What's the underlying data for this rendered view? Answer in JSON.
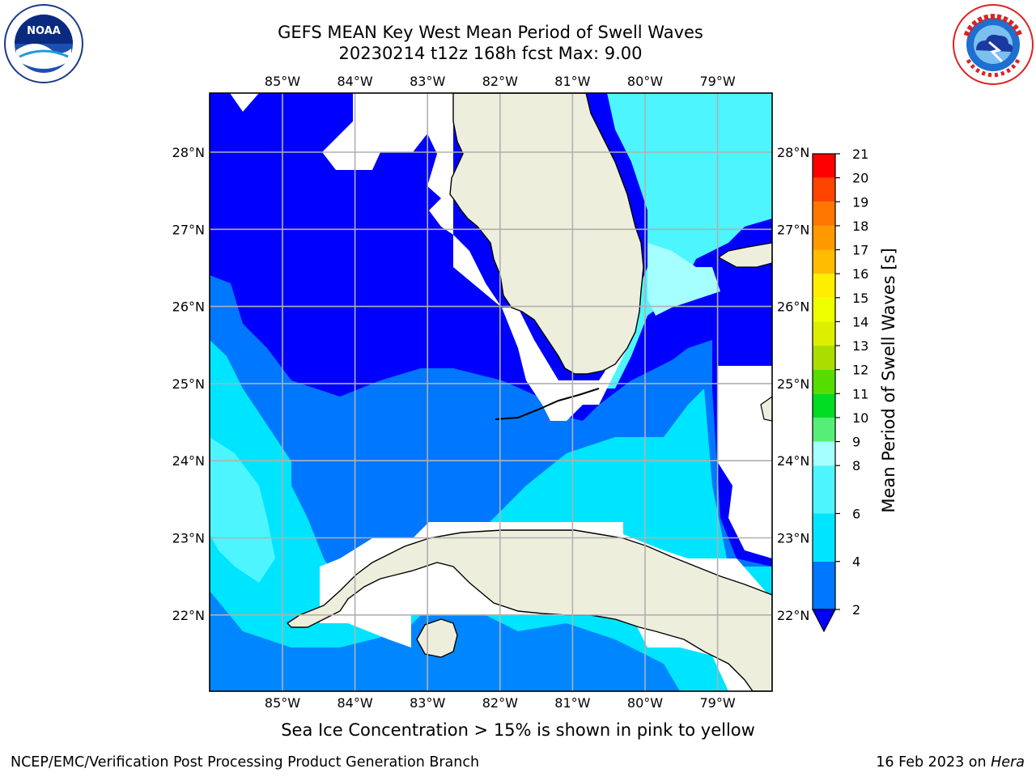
{
  "header": {
    "title_line1": "GEFS MEAN Key West Mean Period of Swell Waves",
    "title_line2": "20230214 t12z 168h fcst   Max: 9.00"
  },
  "logos": {
    "left": "noaa-logo",
    "right": "nws-logo"
  },
  "map": {
    "lon_labels": [
      "85°W",
      "84°W",
      "83°W",
      "82°W",
      "81°W",
      "80°W",
      "79°W"
    ],
    "lat_labels": [
      "28°N",
      "27°N",
      "26°N",
      "25°N",
      "24°N",
      "23°N",
      "22°N"
    ],
    "lon_range": [
      -86.0,
      -78.3
    ],
    "lat_range": [
      21.0,
      28.8
    ],
    "land_color": "#eeeedd",
    "grid_color": "#b0b0b0"
  },
  "colorbar": {
    "label": "Mean Period of Swell Waves [s]",
    "ticks": [
      "2",
      "4",
      "6",
      "8",
      "9",
      "10",
      "11",
      "12",
      "13",
      "14",
      "15",
      "16",
      "17",
      "18",
      "19",
      "20",
      "21"
    ],
    "bins": [
      {
        "from": 2,
        "to": 4,
        "color": "#0077ff"
      },
      {
        "from": 4,
        "to": 6,
        "color": "#00e5ff"
      },
      {
        "from": 6,
        "to": 8,
        "color": "#4df5ff"
      },
      {
        "from": 8,
        "to": 9,
        "color": "#a6ffff"
      },
      {
        "from": 9,
        "to": 10,
        "color": "#55ee77"
      },
      {
        "from": 10,
        "to": 11,
        "color": "#00dd22"
      },
      {
        "from": 11,
        "to": 12,
        "color": "#55dd00"
      },
      {
        "from": 12,
        "to": 13,
        "color": "#aadd00"
      },
      {
        "from": 13,
        "to": 14,
        "color": "#ddee00"
      },
      {
        "from": 14,
        "to": 15,
        "color": "#eeff00"
      },
      {
        "from": 15,
        "to": 16,
        "color": "#ffee00"
      },
      {
        "from": 16,
        "to": 17,
        "color": "#ffbb00"
      },
      {
        "from": 17,
        "to": 18,
        "color": "#ff9900"
      },
      {
        "from": 18,
        "to": 19,
        "color": "#ff7700"
      },
      {
        "from": 19,
        "to": 20,
        "color": "#ff4400"
      },
      {
        "from": 20,
        "to": 21,
        "color": "#ff0000"
      }
    ],
    "under_color": "#0000ff"
  },
  "note": "Sea Ice Concentration > 15% is shown in pink to yellow",
  "footer": {
    "left": "NCEP/EMC/Verification Post Processing Product Generation Branch",
    "date": "16 Feb 2023 on ",
    "host": "Hera"
  }
}
